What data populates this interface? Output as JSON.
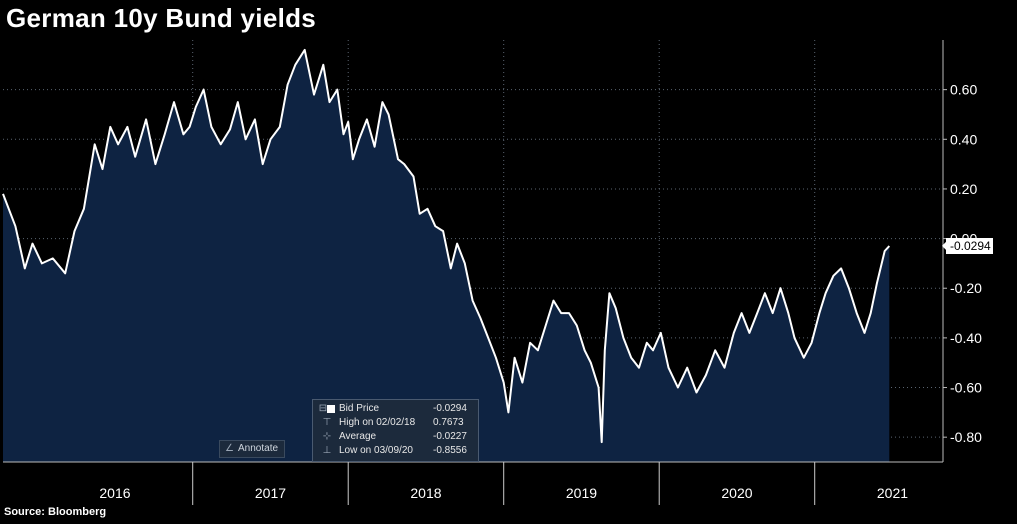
{
  "title": "German 10y Bund yields",
  "source": "Source: Bloomberg",
  "legend": {
    "rows": [
      {
        "label": "Bid Price",
        "value": "-0.0294",
        "icon": "square"
      },
      {
        "label": "High on 02/02/18",
        "value": "0.7673",
        "icon": "high-marker-icon"
      },
      {
        "label": "Average",
        "value": "-0.0227",
        "icon": "average-icon"
      },
      {
        "label": "Low on 03/09/20",
        "value": "-0.8556",
        "icon": "low-marker-icon"
      }
    ]
  },
  "annotate_label": "Annotate",
  "last_value_label": "-0.0294",
  "chart_data": {
    "type": "area",
    "title": "German 10y Bund yields",
    "x_start": 2015.78,
    "x_end": 2021.69,
    "ylim": [
      -0.9,
      0.8
    ],
    "yticks": [
      0.6,
      0.4,
      0.2,
      0.0,
      -0.2,
      -0.4,
      -0.6,
      -0.8
    ],
    "ytick_labels": [
      "0.60",
      "0.40",
      "0.20",
      "0.00",
      "-0.20",
      "-0.40",
      "-0.60",
      "-0.80"
    ],
    "year_labels": [
      "2016",
      "2017",
      "2018",
      "2019",
      "2020",
      "2021"
    ],
    "year_label_x": [
      2016.5,
      2017.5,
      2018.5,
      2019.5,
      2020.5,
      2021.5
    ],
    "year_boundaries": [
      2017.0,
      2018.0,
      2019.0,
      2020.0,
      2021.0
    ],
    "last_value": -0.0294,
    "colors": {
      "fill": "#0e2342",
      "line": "#ffffff",
      "background": "#000000",
      "grid": "#5a6470"
    },
    "series": [
      {
        "name": "Bid Price",
        "points": [
          [
            2015.78,
            0.18
          ],
          [
            2015.86,
            0.05
          ],
          [
            2015.92,
            -0.12
          ],
          [
            2015.97,
            -0.02
          ],
          [
            2016.03,
            -0.1
          ],
          [
            2016.1,
            -0.08
          ],
          [
            2016.18,
            -0.14
          ],
          [
            2016.24,
            0.03
          ],
          [
            2016.3,
            0.12
          ],
          [
            2016.37,
            0.38
          ],
          [
            2016.42,
            0.28
          ],
          [
            2016.47,
            0.45
          ],
          [
            2016.52,
            0.38
          ],
          [
            2016.58,
            0.45
          ],
          [
            2016.63,
            0.33
          ],
          [
            2016.7,
            0.48
          ],
          [
            2016.76,
            0.3
          ],
          [
            2016.82,
            0.42
          ],
          [
            2016.88,
            0.55
          ],
          [
            2016.94,
            0.42
          ],
          [
            2016.98,
            0.45
          ],
          [
            2017.02,
            0.53
          ],
          [
            2017.07,
            0.6
          ],
          [
            2017.12,
            0.45
          ],
          [
            2017.18,
            0.38
          ],
          [
            2017.24,
            0.44
          ],
          [
            2017.29,
            0.55
          ],
          [
            2017.34,
            0.4
          ],
          [
            2017.4,
            0.48
          ],
          [
            2017.45,
            0.3
          ],
          [
            2017.5,
            0.4
          ],
          [
            2017.56,
            0.45
          ],
          [
            2017.61,
            0.62
          ],
          [
            2017.66,
            0.7
          ],
          [
            2017.72,
            0.76
          ],
          [
            2017.78,
            0.58
          ],
          [
            2017.84,
            0.7
          ],
          [
            2017.88,
            0.55
          ],
          [
            2017.93,
            0.6
          ],
          [
            2017.97,
            0.42
          ],
          [
            2018.0,
            0.47
          ],
          [
            2018.03,
            0.32
          ],
          [
            2018.07,
            0.4
          ],
          [
            2018.12,
            0.48
          ],
          [
            2018.17,
            0.37
          ],
          [
            2018.22,
            0.55
          ],
          [
            2018.26,
            0.5
          ],
          [
            2018.32,
            0.32
          ],
          [
            2018.36,
            0.3
          ],
          [
            2018.42,
            0.25
          ],
          [
            2018.46,
            0.1
          ],
          [
            2018.51,
            0.12
          ],
          [
            2018.56,
            0.05
          ],
          [
            2018.61,
            0.03
          ],
          [
            2018.66,
            -0.12
          ],
          [
            2018.7,
            -0.02
          ],
          [
            2018.75,
            -0.1
          ],
          [
            2018.8,
            -0.25
          ],
          [
            2018.85,
            -0.32
          ],
          [
            2018.9,
            -0.4
          ],
          [
            2018.95,
            -0.48
          ],
          [
            2019.0,
            -0.58
          ],
          [
            2019.03,
            -0.7
          ],
          [
            2019.07,
            -0.48
          ],
          [
            2019.12,
            -0.58
          ],
          [
            2019.17,
            -0.42
          ],
          [
            2019.22,
            -0.45
          ],
          [
            2019.27,
            -0.35
          ],
          [
            2019.32,
            -0.25
          ],
          [
            2019.37,
            -0.3
          ],
          [
            2019.42,
            -0.3
          ],
          [
            2019.47,
            -0.35
          ],
          [
            2019.52,
            -0.45
          ],
          [
            2019.56,
            -0.5
          ],
          [
            2019.61,
            -0.6
          ],
          [
            2019.63,
            -0.82
          ],
          [
            2019.65,
            -0.45
          ],
          [
            2019.68,
            -0.22
          ],
          [
            2019.72,
            -0.28
          ],
          [
            2019.77,
            -0.4
          ],
          [
            2019.82,
            -0.48
          ],
          [
            2019.87,
            -0.52
          ],
          [
            2019.92,
            -0.42
          ],
          [
            2019.96,
            -0.45
          ],
          [
            2020.01,
            -0.38
          ],
          [
            2020.06,
            -0.52
          ],
          [
            2020.12,
            -0.6
          ],
          [
            2020.18,
            -0.52
          ],
          [
            2020.24,
            -0.62
          ],
          [
            2020.3,
            -0.55
          ],
          [
            2020.36,
            -0.45
          ],
          [
            2020.42,
            -0.52
          ],
          [
            2020.48,
            -0.38
          ],
          [
            2020.53,
            -0.3
          ],
          [
            2020.58,
            -0.38
          ],
          [
            2020.63,
            -0.3
          ],
          [
            2020.68,
            -0.22
          ],
          [
            2020.73,
            -0.3
          ],
          [
            2020.78,
            -0.2
          ],
          [
            2020.83,
            -0.3
          ],
          [
            2020.87,
            -0.4
          ],
          [
            2020.93,
            -0.48
          ],
          [
            2020.98,
            -0.42
          ],
          [
            2021.03,
            -0.3
          ],
          [
            2021.07,
            -0.22
          ],
          [
            2021.12,
            -0.15
          ],
          [
            2021.17,
            -0.12
          ],
          [
            2021.22,
            -0.2
          ],
          [
            2021.27,
            -0.3
          ],
          [
            2021.32,
            -0.38
          ],
          [
            2021.36,
            -0.3
          ],
          [
            2021.4,
            -0.18
          ],
          [
            2021.45,
            -0.05
          ],
          [
            2021.48,
            -0.03
          ]
        ]
      }
    ]
  }
}
